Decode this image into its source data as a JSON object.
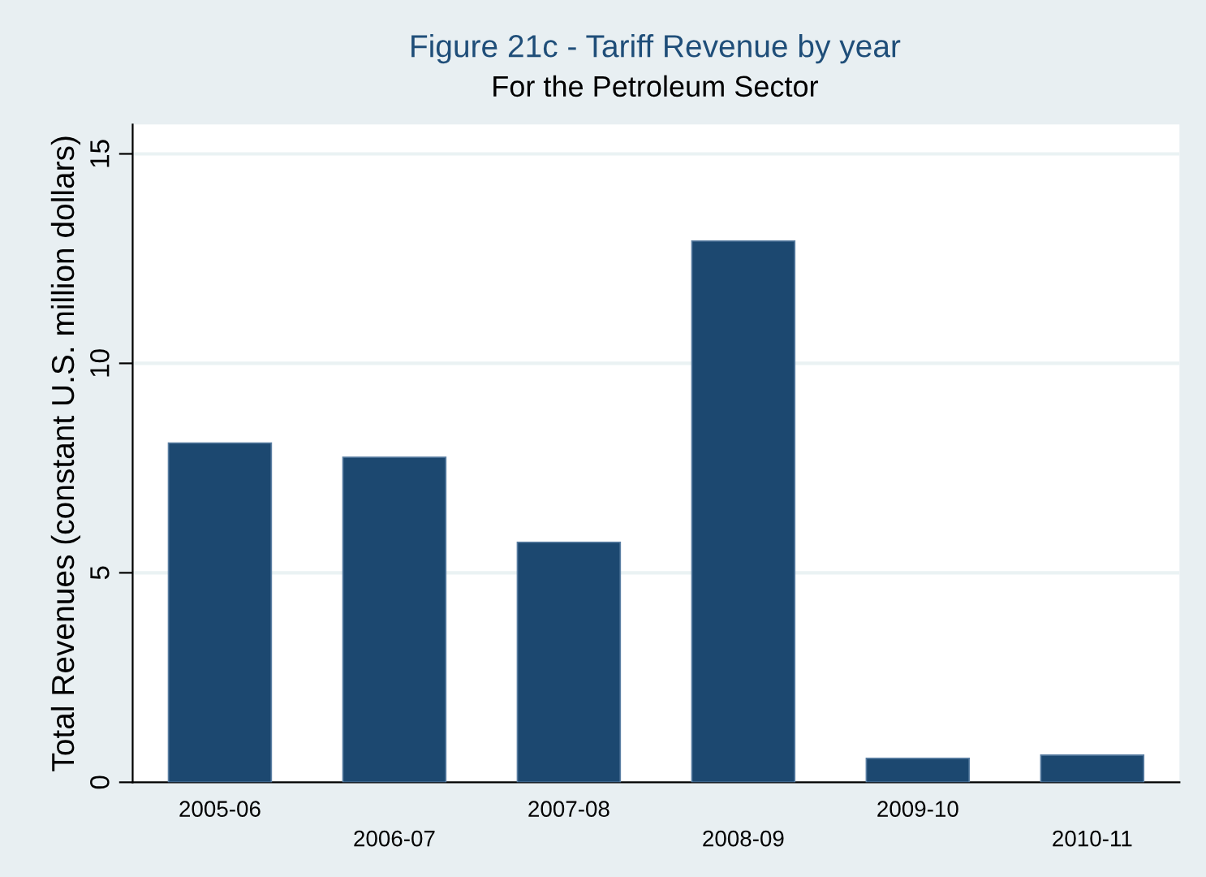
{
  "chart_data": {
    "type": "bar",
    "title": "Figure 21c - Tariff Revenue by year",
    "subtitle": "For the Petroleum Sector",
    "ylabel": "Total Revenues (constant U.S. million dollars)",
    "categories": [
      "2005-06",
      "2006-07",
      "2007-08",
      "2008-09",
      "2009-10",
      "2010-11"
    ],
    "values": [
      8.1,
      7.76,
      5.73,
      12.92,
      0.57,
      0.65
    ],
    "color": "#1c4870",
    "ylim": [
      0,
      15.7
    ],
    "yticks": [
      0,
      5,
      10,
      15
    ],
    "grid": "y"
  }
}
